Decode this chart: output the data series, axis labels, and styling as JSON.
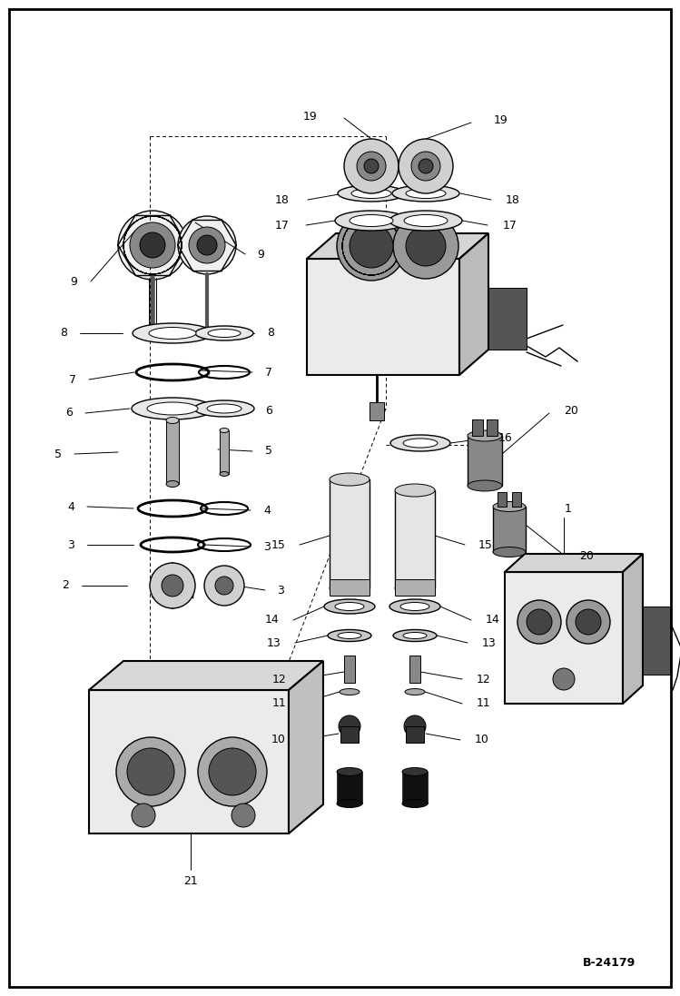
{
  "fig_width": 7.49,
  "fig_height": 10.97,
  "dpi": 100,
  "bg_color": "#ffffff",
  "border_lw": 2.0,
  "line_color": "#000000",
  "part_label_fontsize": 9,
  "ref_label": "B-24179",
  "ref_fontsize": 9
}
